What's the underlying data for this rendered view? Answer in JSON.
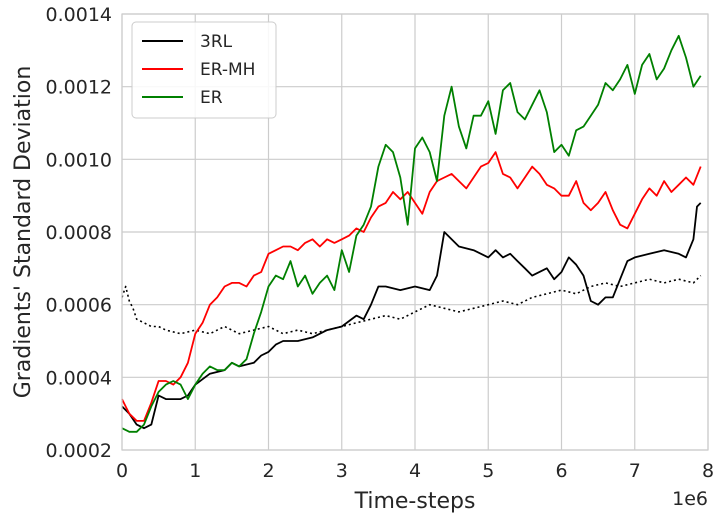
{
  "chart_data": {
    "type": "line",
    "xlabel": "Time-steps",
    "ylabel": "Gradients' Standard Deviation",
    "x_offset_label": "1e6",
    "xlim": [
      0,
      8
    ],
    "ylim": [
      0.0002,
      0.0014
    ],
    "x_ticks": [
      0,
      1,
      2,
      3,
      4,
      5,
      6,
      7,
      8
    ],
    "x_tick_labels": [
      "0",
      "1",
      "2",
      "3",
      "4",
      "5",
      "6",
      "7",
      "8"
    ],
    "y_ticks": [
      0.0002,
      0.0004,
      0.0006,
      0.0008,
      0.001,
      0.0012,
      0.0014
    ],
    "y_tick_labels": [
      "0.0002",
      "0.0004",
      "0.0006",
      "0.0008",
      "0.0010",
      "0.0012",
      "0.0014"
    ],
    "grid": true,
    "legend_position": "top-left",
    "colors": {
      "3RL": "#000000",
      "ER-MH": "#ff0000",
      "ER": "#008000",
      "grid": "#cccccc"
    },
    "series": [
      {
        "name": "3RL",
        "color": "#000000",
        "style": "solid",
        "x": [
          0,
          0.1,
          0.2,
          0.3,
          0.4,
          0.5,
          0.6,
          0.7,
          0.8,
          0.9,
          1.0,
          1.2,
          1.4,
          1.5,
          1.6,
          1.8,
          1.9,
          2.0,
          2.1,
          2.2,
          2.4,
          2.6,
          2.8,
          3.0,
          3.2,
          3.3,
          3.4,
          3.5,
          3.6,
          3.8,
          4.0,
          4.2,
          4.3,
          4.4,
          4.5,
          4.6,
          4.8,
          5.0,
          5.1,
          5.2,
          5.3,
          5.4,
          5.5,
          5.6,
          5.8,
          5.9,
          6.0,
          6.1,
          6.2,
          6.3,
          6.4,
          6.5,
          6.6,
          6.7,
          6.8,
          6.9,
          7.0,
          7.2,
          7.4,
          7.6,
          7.7,
          7.8,
          7.85,
          7.9
        ],
        "y": [
          0.00032,
          0.0003,
          0.00027,
          0.00026,
          0.00027,
          0.00035,
          0.00034,
          0.00034,
          0.00034,
          0.00035,
          0.00038,
          0.00041,
          0.00042,
          0.00044,
          0.00043,
          0.00044,
          0.00046,
          0.00047,
          0.00049,
          0.0005,
          0.0005,
          0.00051,
          0.00053,
          0.00054,
          0.00057,
          0.00056,
          0.0006,
          0.00065,
          0.00065,
          0.00064,
          0.00065,
          0.00064,
          0.00068,
          0.0008,
          0.00078,
          0.00076,
          0.00075,
          0.00073,
          0.00075,
          0.00073,
          0.00074,
          0.00072,
          0.0007,
          0.00068,
          0.0007,
          0.00067,
          0.00069,
          0.00073,
          0.00071,
          0.00068,
          0.00061,
          0.0006,
          0.00062,
          0.00062,
          0.00067,
          0.00072,
          0.00073,
          0.00074,
          0.00075,
          0.00074,
          0.00073,
          0.00078,
          0.00087,
          0.00088
        ]
      },
      {
        "name": "3RL (dotted)",
        "color": "#000000",
        "style": "dotted",
        "x": [
          0,
          0.05,
          0.1,
          0.15,
          0.2,
          0.3,
          0.4,
          0.5,
          0.6,
          0.8,
          1.0,
          1.2,
          1.4,
          1.6,
          1.8,
          2.0,
          2.2,
          2.4,
          2.6,
          2.8,
          3.0,
          3.2,
          3.4,
          3.6,
          3.8,
          4.0,
          4.2,
          4.4,
          4.6,
          4.8,
          5.0,
          5.2,
          5.4,
          5.6,
          5.8,
          6.0,
          6.2,
          6.4,
          6.6,
          6.8,
          7.0,
          7.2,
          7.4,
          7.6,
          7.8,
          7.9
        ],
        "y": [
          0.00062,
          0.00065,
          0.00061,
          0.00059,
          0.00056,
          0.00055,
          0.00054,
          0.00054,
          0.00053,
          0.00052,
          0.00053,
          0.00052,
          0.00054,
          0.00052,
          0.00053,
          0.00054,
          0.00052,
          0.00053,
          0.00052,
          0.00053,
          0.00054,
          0.00055,
          0.00056,
          0.00057,
          0.00056,
          0.00058,
          0.0006,
          0.00059,
          0.00058,
          0.00059,
          0.0006,
          0.00061,
          0.0006,
          0.00062,
          0.00063,
          0.00064,
          0.00063,
          0.00065,
          0.00066,
          0.00065,
          0.00066,
          0.00067,
          0.00066,
          0.00067,
          0.00066,
          0.00068
        ]
      },
      {
        "name": "ER-MH",
        "color": "#ff0000",
        "style": "solid",
        "x": [
          0,
          0.1,
          0.2,
          0.3,
          0.4,
          0.5,
          0.6,
          0.7,
          0.8,
          0.9,
          1.0,
          1.1,
          1.2,
          1.3,
          1.4,
          1.5,
          1.6,
          1.7,
          1.8,
          1.9,
          2.0,
          2.1,
          2.2,
          2.3,
          2.4,
          2.5,
          2.6,
          2.7,
          2.8,
          2.9,
          3.0,
          3.1,
          3.2,
          3.3,
          3.4,
          3.5,
          3.6,
          3.7,
          3.8,
          3.9,
          4.0,
          4.1,
          4.2,
          4.3,
          4.4,
          4.5,
          4.6,
          4.7,
          4.8,
          4.9,
          5.0,
          5.1,
          5.2,
          5.3,
          5.4,
          5.5,
          5.6,
          5.7,
          5.8,
          5.9,
          6.0,
          6.1,
          6.2,
          6.3,
          6.4,
          6.5,
          6.6,
          6.7,
          6.8,
          6.9,
          7.0,
          7.1,
          7.2,
          7.3,
          7.4,
          7.5,
          7.6,
          7.7,
          7.8,
          7.9
        ],
        "y": [
          0.00034,
          0.0003,
          0.00028,
          0.00028,
          0.00033,
          0.00039,
          0.00039,
          0.00038,
          0.0004,
          0.00044,
          0.00052,
          0.00055,
          0.0006,
          0.00062,
          0.00065,
          0.00066,
          0.00066,
          0.00065,
          0.00068,
          0.00069,
          0.00074,
          0.00075,
          0.00076,
          0.00076,
          0.00075,
          0.00077,
          0.00078,
          0.00076,
          0.00078,
          0.00077,
          0.00078,
          0.00079,
          0.00081,
          0.0008,
          0.00084,
          0.00087,
          0.00088,
          0.00091,
          0.00089,
          0.00091,
          0.00088,
          0.00085,
          0.00091,
          0.00094,
          0.00095,
          0.00096,
          0.00094,
          0.00092,
          0.00095,
          0.00098,
          0.00099,
          0.00102,
          0.00096,
          0.00095,
          0.00092,
          0.00095,
          0.00098,
          0.00096,
          0.00093,
          0.00092,
          0.0009,
          0.0009,
          0.00094,
          0.00088,
          0.00086,
          0.00088,
          0.00091,
          0.00086,
          0.00082,
          0.00081,
          0.00085,
          0.00089,
          0.00092,
          0.0009,
          0.00094,
          0.00091,
          0.00093,
          0.00095,
          0.00093,
          0.00098
        ]
      },
      {
        "name": "ER",
        "color": "#008000",
        "style": "solid",
        "x": [
          0,
          0.1,
          0.2,
          0.3,
          0.4,
          0.5,
          0.6,
          0.7,
          0.8,
          0.9,
          1.0,
          1.1,
          1.2,
          1.3,
          1.4,
          1.5,
          1.6,
          1.7,
          1.8,
          1.9,
          2.0,
          2.1,
          2.2,
          2.3,
          2.4,
          2.5,
          2.6,
          2.7,
          2.8,
          2.9,
          3.0,
          3.1,
          3.2,
          3.3,
          3.4,
          3.5,
          3.6,
          3.7,
          3.8,
          3.9,
          4.0,
          4.1,
          4.2,
          4.3,
          4.4,
          4.5,
          4.6,
          4.7,
          4.8,
          4.9,
          5.0,
          5.1,
          5.2,
          5.3,
          5.4,
          5.5,
          5.6,
          5.7,
          5.8,
          5.9,
          6.0,
          6.1,
          6.2,
          6.3,
          6.4,
          6.5,
          6.6,
          6.7,
          6.8,
          6.9,
          7.0,
          7.1,
          7.2,
          7.3,
          7.4,
          7.5,
          7.6,
          7.7,
          7.8,
          7.9
        ],
        "y": [
          0.00026,
          0.00025,
          0.00025,
          0.00027,
          0.00032,
          0.00036,
          0.00038,
          0.00039,
          0.00038,
          0.00034,
          0.00038,
          0.00041,
          0.00043,
          0.00042,
          0.00042,
          0.00044,
          0.00043,
          0.00045,
          0.00052,
          0.00058,
          0.00065,
          0.00068,
          0.00067,
          0.00072,
          0.00065,
          0.00068,
          0.00063,
          0.00066,
          0.00068,
          0.00064,
          0.00075,
          0.00069,
          0.00079,
          0.00082,
          0.00087,
          0.00098,
          0.00104,
          0.00102,
          0.00095,
          0.00082,
          0.00103,
          0.00106,
          0.00102,
          0.00094,
          0.00112,
          0.0012,
          0.00109,
          0.00103,
          0.00112,
          0.00112,
          0.00116,
          0.00107,
          0.00119,
          0.00121,
          0.00113,
          0.00111,
          0.00115,
          0.00119,
          0.00113,
          0.00102,
          0.00104,
          0.00101,
          0.00108,
          0.00109,
          0.00112,
          0.00115,
          0.00121,
          0.00119,
          0.00122,
          0.00126,
          0.00118,
          0.00126,
          0.00129,
          0.00122,
          0.00125,
          0.0013,
          0.00134,
          0.00128,
          0.0012,
          0.00123
        ]
      }
    ],
    "legend": [
      {
        "label": "3RL",
        "color": "#000000"
      },
      {
        "label": "ER-MH",
        "color": "#ff0000"
      },
      {
        "label": "ER",
        "color": "#008000"
      }
    ]
  }
}
